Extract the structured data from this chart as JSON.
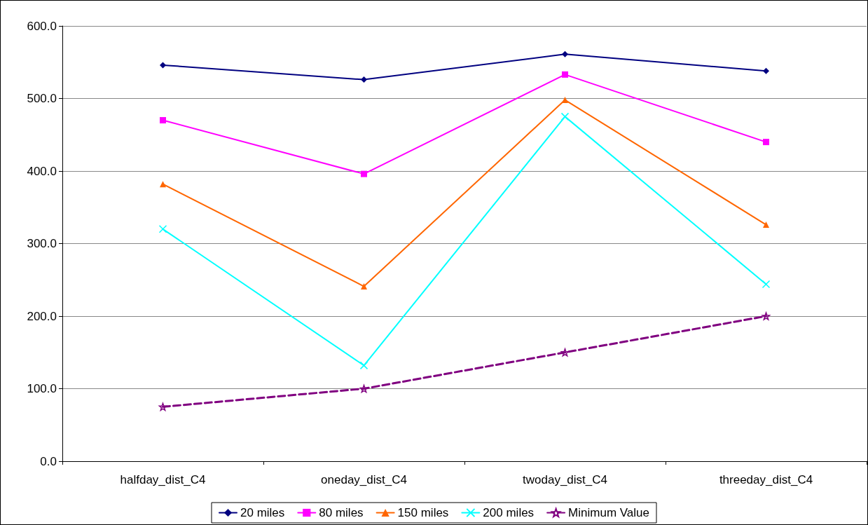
{
  "chart_data": {
    "type": "line",
    "categories": [
      "halfday_dist_C4",
      "oneday_dist_C4",
      "twoday_dist_C4",
      "threeday_dist_C4"
    ],
    "series": [
      {
        "name": "20 miles",
        "color": "#000080",
        "marker": "diamond",
        "line_style": "solid",
        "values": [
          546,
          526,
          561,
          538
        ]
      },
      {
        "name": "80 miles",
        "color": "#ff00ff",
        "marker": "square",
        "line_style": "solid",
        "values": [
          470,
          396,
          533,
          440
        ]
      },
      {
        "name": "150 miles",
        "color": "#ff6600",
        "marker": "triangle",
        "line_style": "solid",
        "values": [
          382,
          241,
          498,
          326
        ]
      },
      {
        "name": "200 miles",
        "color": "#00ffff",
        "marker": "cross",
        "line_style": "solid",
        "values": [
          320,
          132,
          475,
          244
        ]
      },
      {
        "name": "Minimum Value",
        "color": "#800080",
        "marker": "star",
        "line_style": "dashed",
        "values": [
          75,
          100,
          150,
          200
        ]
      }
    ],
    "ylim": [
      0,
      600
    ],
    "yticks": [
      {
        "value": 0,
        "label": "0.0"
      },
      {
        "value": 100,
        "label": "100.0"
      },
      {
        "value": 200,
        "label": "200.0"
      },
      {
        "value": 300,
        "label": "300.0"
      },
      {
        "value": 400,
        "label": "400.0"
      },
      {
        "value": 500,
        "label": "500.0"
      },
      {
        "value": 600,
        "label": "600.0"
      }
    ],
    "grid": "y",
    "legend": "bottom"
  }
}
